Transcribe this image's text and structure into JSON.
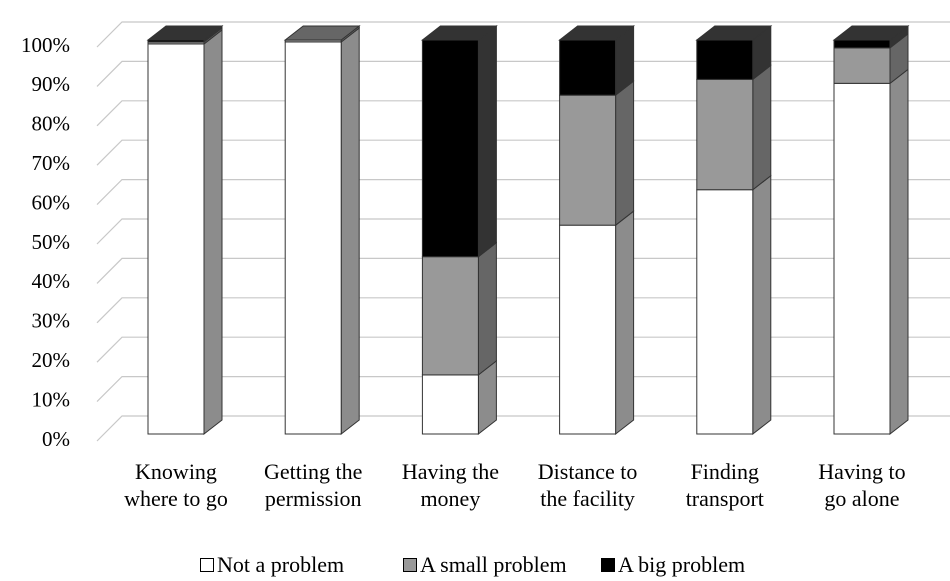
{
  "chart_data": {
    "type": "bar3d_stacked",
    "categories": [
      "Knowing\nwhere to go",
      "Getting the\npermission",
      "Having the\nmoney",
      "Distance to\nthe facility",
      "Finding\ntransport",
      "Having to\ngo alone"
    ],
    "series": [
      {
        "name": "Not a problem",
        "color": "#ffffff",
        "side": "#8c8c8c",
        "values": [
          99,
          99.5,
          15,
          53,
          62,
          89
        ]
      },
      {
        "name": "A small problem",
        "color": "#999999",
        "side": "#666666",
        "values": [
          0.5,
          0.5,
          30,
          33,
          28,
          9
        ]
      },
      {
        "name": "A big problem",
        "color": "#000000",
        "side": "#333333",
        "values": [
          0.5,
          0,
          55,
          14,
          10,
          2
        ]
      }
    ],
    "ylim": [
      0,
      100
    ],
    "yticks": [
      {
        "value": 0,
        "label": "0%"
      },
      {
        "value": 10,
        "label": "10%"
      },
      {
        "value": 20,
        "label": "20%"
      },
      {
        "value": 30,
        "label": "30%"
      },
      {
        "value": 40,
        "label": "40%"
      },
      {
        "value": 50,
        "label": "50%"
      },
      {
        "value": 60,
        "label": "60%"
      },
      {
        "value": 70,
        "label": "70%"
      },
      {
        "value": 80,
        "label": "80%"
      },
      {
        "value": 90,
        "label": "90%"
      },
      {
        "value": 100,
        "label": "100%"
      }
    ],
    "grid": true
  }
}
